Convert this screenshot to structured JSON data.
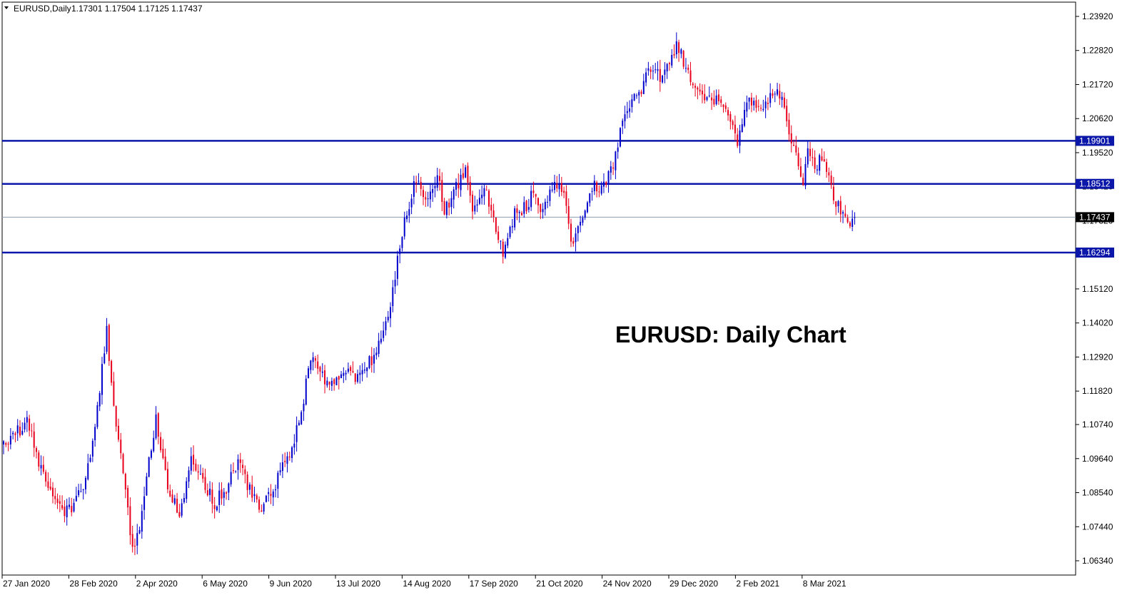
{
  "header": {
    "symbol": "EURUSD,Daily",
    "ohlc": "1.17301 1.17504 1.17125 1.17437"
  },
  "annotation": "EURUSD: Daily Chart",
  "colors": {
    "bull": "#0000cc",
    "bear": "#e8001c",
    "level_line": "#0a17a8",
    "price_line": "#8a9bb0",
    "frame": "#000000"
  },
  "chart_data": {
    "type": "candlestick",
    "title": "EURUSD: Daily Chart",
    "ylim": [
      1.0587,
      1.2447
    ],
    "y_ticks": [
      "1.23920",
      "1.22820",
      "1.21720",
      "1.20620",
      "1.19520",
      "1.18420",
      "1.17320",
      "1.16220",
      "1.15120",
      "1.14020",
      "1.12920",
      "1.11820",
      "1.10740",
      "1.09640",
      "1.08540",
      "1.07440",
      "1.06340"
    ],
    "x_ticks": [
      "27 Jan 2020",
      "28 Feb 2020",
      "2 Apr 2020",
      "6 May 2020",
      "9 Jun 2020",
      "13 Jul 2020",
      "14 Aug 2020",
      "17 Sep 2020",
      "21 Oct 2020",
      "24 Nov 2020",
      "29 Dec 2020",
      "2 Feb 2021",
      "8 Mar 2021"
    ],
    "levels": [
      {
        "value": 1.19901,
        "label": "1.19901"
      },
      {
        "value": 1.18512,
        "label": "1.18512"
      },
      {
        "value": 1.16294,
        "label": "1.16294"
      }
    ],
    "current_price": {
      "value": 1.17437,
      "label": "1.17437"
    },
    "close_path": [
      [
        0,
        1.101
      ],
      [
        10,
        1.108
      ],
      [
        15,
        1.096
      ],
      [
        22,
        1.083
      ],
      [
        27,
        1.079
      ],
      [
        35,
        1.088
      ],
      [
        40,
        1.112
      ],
      [
        44,
        1.138
      ],
      [
        46,
        1.12
      ],
      [
        51,
        1.09
      ],
      [
        55,
        1.067
      ],
      [
        58,
        1.075
      ],
      [
        62,
        1.095
      ],
      [
        65,
        1.11
      ],
      [
        70,
        1.088
      ],
      [
        75,
        1.079
      ],
      [
        80,
        1.095
      ],
      [
        85,
        1.09
      ],
      [
        90,
        1.082
      ],
      [
        95,
        1.087
      ],
      [
        100,
        1.096
      ],
      [
        105,
        1.086
      ],
      [
        110,
        1.08
      ],
      [
        115,
        1.087
      ],
      [
        120,
        1.095
      ],
      [
        125,
        1.105
      ],
      [
        129,
        1.12
      ],
      [
        132,
        1.13
      ],
      [
        136,
        1.123
      ],
      [
        140,
        1.12
      ],
      [
        145,
        1.126
      ],
      [
        150,
        1.122
      ],
      [
        155,
        1.126
      ],
      [
        160,
        1.133
      ],
      [
        165,
        1.145
      ],
      [
        168,
        1.16
      ],
      [
        170,
        1.17
      ],
      [
        173,
        1.178
      ],
      [
        176,
        1.187
      ],
      [
        180,
        1.181
      ],
      [
        185,
        1.188
      ],
      [
        188,
        1.176
      ],
      [
        193,
        1.184
      ],
      [
        197,
        1.189
      ],
      [
        200,
        1.178
      ],
      [
        205,
        1.184
      ],
      [
        210,
        1.17
      ],
      [
        213,
        1.163
      ],
      [
        218,
        1.176
      ],
      [
        222,
        1.177
      ],
      [
        226,
        1.182
      ],
      [
        230,
        1.175
      ],
      [
        235,
        1.186
      ],
      [
        239,
        1.182
      ],
      [
        242,
        1.165
      ],
      [
        245,
        1.17
      ],
      [
        248,
        1.178
      ],
      [
        252,
        1.184
      ],
      [
        256,
        1.185
      ],
      [
        260,
        1.19
      ],
      [
        264,
        1.205
      ],
      [
        268,
        1.212
      ],
      [
        272,
        1.215
      ],
      [
        276,
        1.223
      ],
      [
        280,
        1.22
      ],
      [
        284,
        1.226
      ],
      [
        287,
        1.23
      ],
      [
        290,
        1.225
      ],
      [
        294,
        1.217
      ],
      [
        298,
        1.212
      ],
      [
        302,
        1.213
      ],
      [
        306,
        1.212
      ],
      [
        310,
        1.206
      ],
      [
        313,
        1.198
      ],
      [
        317,
        1.21
      ],
      [
        320,
        1.213
      ],
      [
        324,
        1.208
      ],
      [
        328,
        1.214
      ],
      [
        330,
        1.217
      ],
      [
        333,
        1.208
      ],
      [
        336,
        1.198
      ],
      [
        339,
        1.192
      ],
      [
        341,
        1.186
      ],
      [
        343,
        1.195
      ],
      [
        346,
        1.191
      ],
      [
        349,
        1.193
      ],
      [
        352,
        1.186
      ],
      [
        355,
        1.179
      ],
      [
        358,
        1.176
      ],
      [
        360,
        1.172
      ],
      [
        363,
        1.1744
      ]
    ]
  }
}
